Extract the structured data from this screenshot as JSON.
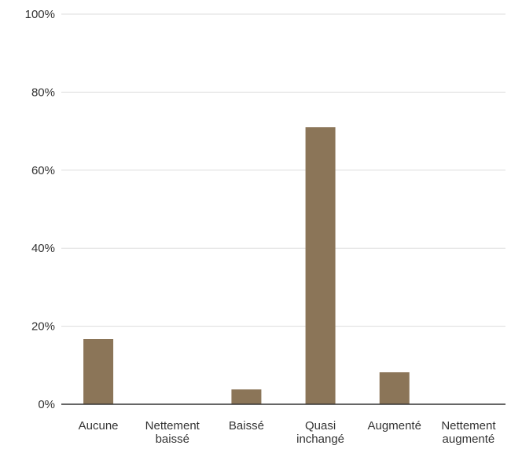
{
  "chart_data": {
    "type": "bar",
    "title": "",
    "xlabel": "",
    "ylabel": "",
    "categories": [
      [
        "Aucune"
      ],
      [
        "Nettement",
        "baissé"
      ],
      [
        "Baissé"
      ],
      [
        "Quasi",
        "inchangé"
      ],
      [
        "Augmenté"
      ],
      [
        "Nettement",
        "augmenté"
      ]
    ],
    "values": [
      16.7,
      0,
      3.8,
      71.0,
      8.2,
      0
    ],
    "ylim": [
      0,
      100
    ],
    "yticks": [
      0,
      20,
      40,
      60,
      80,
      100
    ],
    "ytick_labels": [
      "0%",
      "20%",
      "40%",
      "60%",
      "80%",
      "100%"
    ],
    "grid": true,
    "legend": "none",
    "bar_color": "#8b7558"
  }
}
